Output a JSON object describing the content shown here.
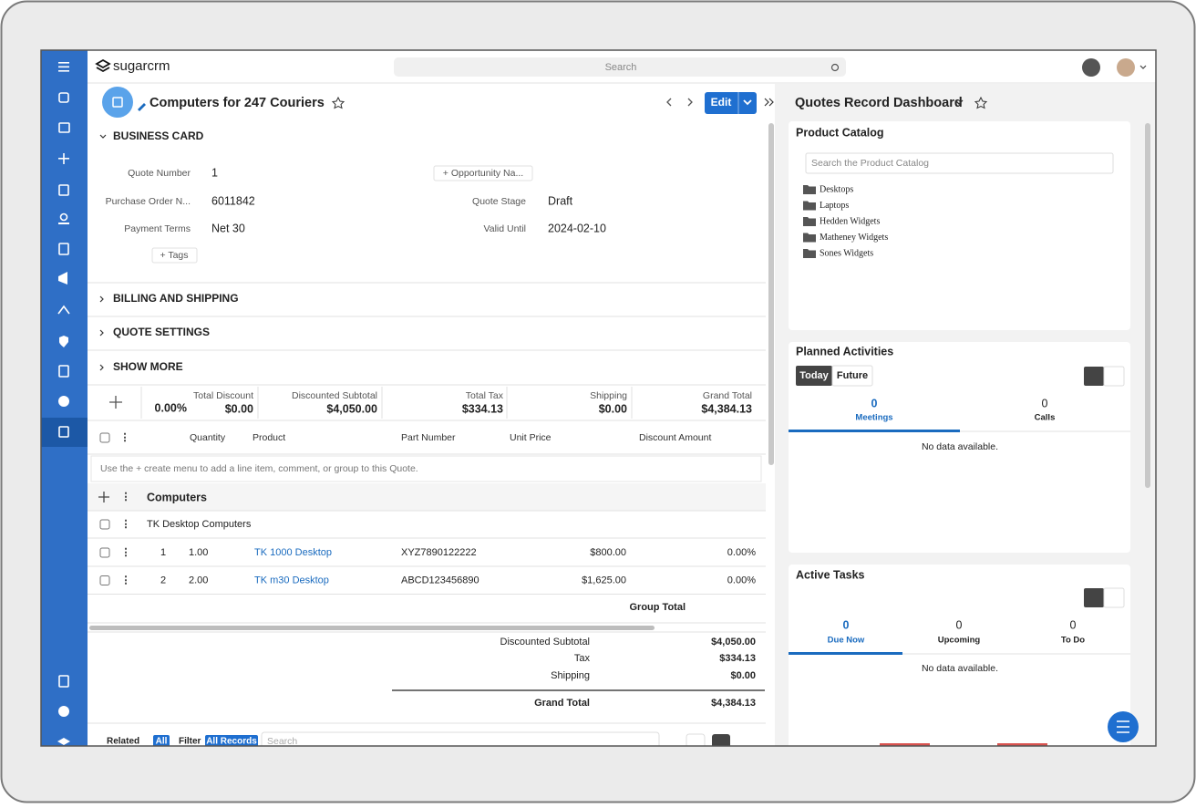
{
  "topbar": {
    "logo": "sugarcrm",
    "search": "Search"
  },
  "record": {
    "title": "Computers for 247 Couriers",
    "edit": "Edit"
  },
  "business_card": {
    "heading": "BUSINESS CARD",
    "fields": [
      {
        "label": "Quote Number",
        "value": "1"
      },
      {
        "label": "Purchase Order N...",
        "value": "6011842"
      },
      {
        "label": "Payment Terms",
        "value": "Net 30"
      },
      {
        "label": "Quote Stage",
        "value": "Draft"
      },
      {
        "label": "Valid Until",
        "value": "2024-02-10"
      }
    ],
    "opportunity": "+ Opportunity Na...",
    "tags": "+ Tags"
  },
  "panels": [
    "BILLING AND SHIPPING",
    "QUOTE SETTINGS",
    "SHOW MORE"
  ],
  "totals": {
    "discount_percent": "0.00%",
    "items": [
      {
        "label": "Total Discount",
        "value": "$0.00"
      },
      {
        "label": "Discounted Subtotal",
        "value": "$4,050.00"
      },
      {
        "label": "Total Tax",
        "value": "$334.13"
      },
      {
        "label": "Shipping",
        "value": "$0.00"
      },
      {
        "label": "Grand Total",
        "value": "$4,384.13"
      }
    ]
  },
  "table": {
    "columns": [
      "Quantity",
      "Product",
      "Part Number",
      "Unit Price",
      "Discount Amount"
    ],
    "hint": "Use the + create menu to add a line item, comment, or group to this Quote.",
    "group": "Computers",
    "comment": "TK Desktop Computers",
    "rows": [
      [
        "1",
        "1.00",
        "TK 1000 Desktop",
        "XYZ7890122222",
        "$800.00",
        "0.00%"
      ],
      [
        "2",
        "2.00",
        "TK m30 Desktop",
        "ABCD123456890",
        "$1,625.00",
        "0.00%"
      ]
    ],
    "group_total": "Group Total"
  },
  "summary": [
    {
      "label": "Discounted Subtotal",
      "value": "$4,050.00"
    },
    {
      "label": "Tax",
      "value": "$334.13"
    },
    {
      "label": "Shipping",
      "value": "$0.00"
    },
    {
      "label": "Grand Total",
      "value": "$4,384.13"
    }
  ],
  "subpanel": {
    "related": "Related",
    "all": "All",
    "filter": "Filter",
    "all_records": "All Records",
    "search": "Search"
  },
  "dashboard": {
    "title": "Quotes Record Dashboard",
    "product_catalog": {
      "title": "Product Catalog",
      "search": "Search the Product Catalog",
      "folders": [
        "Desktops",
        "Laptops",
        "Hedden Widgets",
        "Matheney Widgets",
        "Sones Widgets"
      ]
    },
    "planned_activities": {
      "title": "Planned Activities",
      "tabs": [
        "Today",
        "Future"
      ],
      "counts": [
        {
          "count": "0",
          "label": "Meetings"
        },
        {
          "count": "0",
          "label": "Calls"
        }
      ],
      "empty": "No data available."
    },
    "active_tasks": {
      "title": "Active Tasks",
      "counts": [
        {
          "count": "0",
          "label": "Due Now"
        },
        {
          "count": "0",
          "label": "Upcoming"
        },
        {
          "count": "0",
          "label": "To Do"
        }
      ],
      "empty": "No data available."
    }
  }
}
